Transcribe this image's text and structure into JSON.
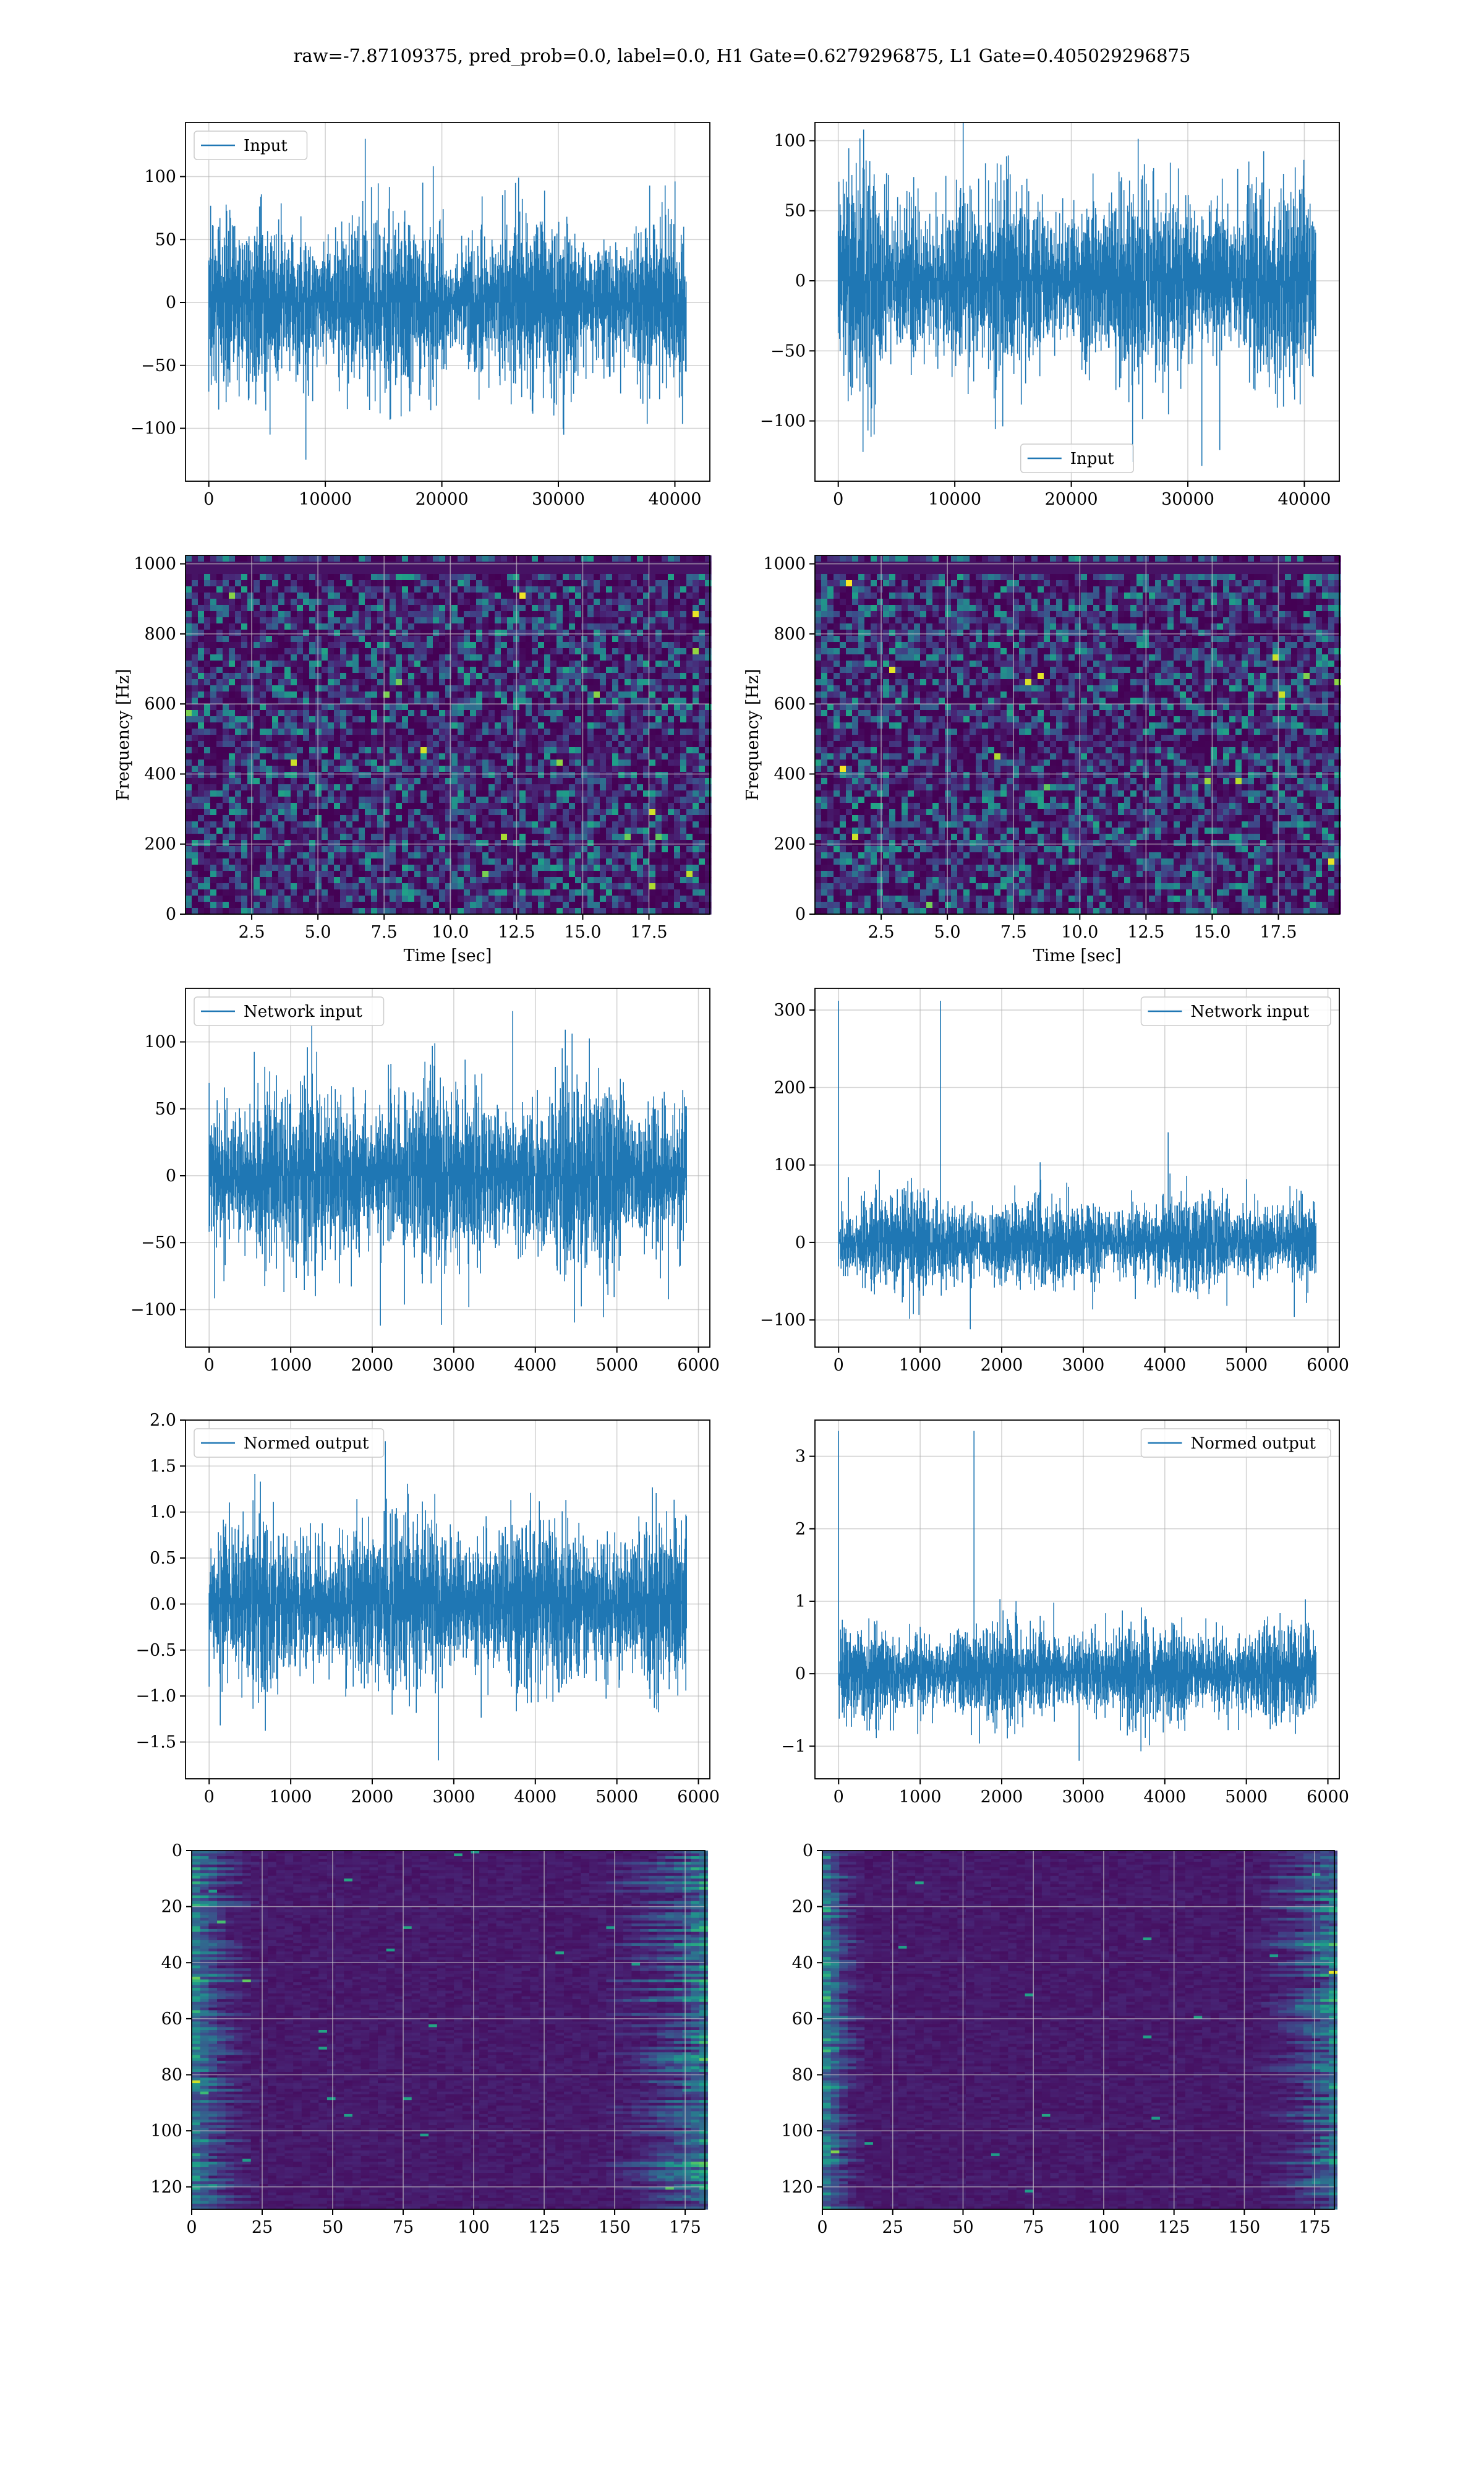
{
  "figure": {
    "suptitle": "raw=-7.87109375, pred_prob=0.0, label=0.0, H1 Gate=0.6279296875, L1 Gate=0.405029296875"
  },
  "colors": {
    "series": "#1f77b4",
    "grid": "#b0b0b0",
    "viridis_dark": "#440154",
    "viridis_yellow": "#fde725"
  },
  "chart_data": [
    {
      "id": "h1-input",
      "type": "line",
      "series": [
        {
          "name": "Input",
          "n_samples": 40960,
          "mean": 0,
          "std": 28,
          "min": -125,
          "max": 130
        }
      ],
      "legend_position": "top-left",
      "xlim": [
        -2000,
        43000
      ],
      "ylim": [
        -142,
        143
      ],
      "xticks": [
        0,
        10000,
        20000,
        30000,
        40000
      ],
      "xtick_labels": [
        "0",
        "10000",
        "20000",
        "30000",
        "40000"
      ],
      "yticks": [
        -100,
        -50,
        0,
        50,
        100
      ],
      "ytick_labels": [
        "−100",
        "−50",
        "0",
        "50",
        "100"
      ],
      "grid": true,
      "xlabel": "",
      "ylabel": ""
    },
    {
      "id": "l1-input",
      "type": "line",
      "series": [
        {
          "name": "Input",
          "n_samples": 40960,
          "mean": 0,
          "std": 28,
          "min": -132,
          "max": 115
        }
      ],
      "legend_position": "bottom-center",
      "xlim": [
        -2000,
        43000
      ],
      "ylim": [
        -143,
        113
      ],
      "xticks": [
        0,
        10000,
        20000,
        30000,
        40000
      ],
      "xtick_labels": [
        "0",
        "10000",
        "20000",
        "30000",
        "40000"
      ],
      "yticks": [
        -100,
        -50,
        0,
        50,
        100
      ],
      "ytick_labels": [
        "−100",
        "−50",
        "0",
        "50",
        "100"
      ],
      "grid": true,
      "xlabel": "",
      "ylabel": ""
    },
    {
      "id": "h1-spectrogram",
      "type": "heatmap",
      "colormap": "viridis",
      "xlim": [
        0,
        19.8
      ],
      "ylim": [
        0,
        1024
      ],
      "xticks": [
        2.5,
        5.0,
        7.5,
        10.0,
        12.5,
        15.0,
        17.5
      ],
      "xtick_labels": [
        "2.5",
        "5.0",
        "7.5",
        "10.0",
        "12.5",
        "15.0",
        "17.5"
      ],
      "yticks": [
        0,
        200,
        400,
        600,
        800,
        1000
      ],
      "ytick_labels": [
        "0",
        "200",
        "400",
        "600",
        "800",
        "1000"
      ],
      "xlabel": "Time [sec]",
      "ylabel": "Frequency [Hz]",
      "grid": true
    },
    {
      "id": "l1-spectrogram",
      "type": "heatmap",
      "colormap": "viridis",
      "xlim": [
        0,
        19.8
      ],
      "ylim": [
        0,
        1024
      ],
      "xticks": [
        2.5,
        5.0,
        7.5,
        10.0,
        12.5,
        15.0,
        17.5
      ],
      "xtick_labels": [
        "2.5",
        "5.0",
        "7.5",
        "10.0",
        "12.5",
        "15.0",
        "17.5"
      ],
      "yticks": [
        0,
        200,
        400,
        600,
        800,
        1000
      ],
      "ytick_labels": [
        "0",
        "200",
        "400",
        "600",
        "800",
        "1000"
      ],
      "xlabel": "Time [sec]",
      "ylabel": "Frequency [Hz]",
      "grid": true
    },
    {
      "id": "h1-network-input",
      "type": "line",
      "series": [
        {
          "name": "Network input",
          "n_samples": 5850,
          "mean": 0,
          "std": 28,
          "min": -112,
          "max": 123
        }
      ],
      "legend_position": "top-left",
      "xlim": [
        -290,
        6140
      ],
      "ylim": [
        -128,
        140
      ],
      "xticks": [
        0,
        1000,
        2000,
        3000,
        4000,
        5000,
        6000
      ],
      "xtick_labels": [
        "0",
        "1000",
        "2000",
        "3000",
        "4000",
        "5000",
        "6000"
      ],
      "yticks": [
        -100,
        -50,
        0,
        50,
        100
      ],
      "ytick_labels": [
        "−100",
        "−50",
        "0",
        "50",
        "100"
      ],
      "grid": true,
      "xlabel": "",
      "ylabel": ""
    },
    {
      "id": "l1-network-input",
      "type": "line",
      "series": [
        {
          "name": "Network input",
          "n_samples": 5850,
          "mean": 0,
          "std": 24,
          "min": -112,
          "max": 312,
          "spike_at": 0
        }
      ],
      "legend_position": "top-right",
      "xlim": [
        -290,
        6140
      ],
      "ylim": [
        -135,
        328
      ],
      "xticks": [
        0,
        1000,
        2000,
        3000,
        4000,
        5000,
        6000
      ],
      "xtick_labels": [
        "0",
        "1000",
        "2000",
        "3000",
        "4000",
        "5000",
        "6000"
      ],
      "yticks": [
        -100,
        0,
        100,
        200,
        300
      ],
      "ytick_labels": [
        "−100",
        "0",
        "100",
        "200",
        "300"
      ],
      "grid": true,
      "xlabel": "",
      "ylabel": ""
    },
    {
      "id": "h1-normed-output",
      "type": "line",
      "series": [
        {
          "name": "Normed output",
          "n_samples": 5850,
          "mean": 0,
          "std": 0.38,
          "min": -1.7,
          "max": 1.77
        }
      ],
      "legend_position": "top-left",
      "xlim": [
        -290,
        6140
      ],
      "ylim": [
        -1.9,
        2.0
      ],
      "xticks": [
        0,
        1000,
        2000,
        3000,
        4000,
        5000,
        6000
      ],
      "xtick_labels": [
        "0",
        "1000",
        "2000",
        "3000",
        "4000",
        "5000",
        "6000"
      ],
      "yticks": [
        -1.5,
        -1.0,
        -0.5,
        0.0,
        0.5,
        1.0,
        1.5,
        2.0
      ],
      "ytick_labels": [
        "−1.5",
        "−1.0",
        "−0.5",
        "0.0",
        "0.5",
        "1.0",
        "1.5",
        "2.0"
      ],
      "grid": true,
      "xlabel": "",
      "ylabel": ""
    },
    {
      "id": "l1-normed-output",
      "type": "line",
      "series": [
        {
          "name": "Normed output",
          "n_samples": 5850,
          "mean": 0,
          "std": 0.27,
          "min": -1.2,
          "max": 3.35,
          "spike_at": 0
        }
      ],
      "legend_position": "top-right",
      "xlim": [
        -290,
        6140
      ],
      "ylim": [
        -1.45,
        3.5
      ],
      "xticks": [
        0,
        1000,
        2000,
        3000,
        4000,
        5000,
        6000
      ],
      "xtick_labels": [
        "0",
        "1000",
        "2000",
        "3000",
        "4000",
        "5000",
        "6000"
      ],
      "yticks": [
        -1,
        0,
        1,
        2,
        3
      ],
      "ytick_labels": [
        "−1",
        "0",
        "1",
        "2",
        "3"
      ],
      "grid": true,
      "xlabel": "",
      "ylabel": ""
    },
    {
      "id": "h1-feature-map",
      "type": "heatmap",
      "colormap": "viridis",
      "xlim": [
        0,
        182
      ],
      "ylim": [
        128,
        0
      ],
      "xticks": [
        0,
        25,
        50,
        75,
        100,
        125,
        150,
        175
      ],
      "xtick_labels": [
        "0",
        "25",
        "50",
        "75",
        "100",
        "125",
        "150",
        "175"
      ],
      "yticks": [
        0,
        20,
        40,
        60,
        80,
        100,
        120
      ],
      "ytick_labels": [
        "0",
        "20",
        "40",
        "60",
        "80",
        "100",
        "120"
      ],
      "grid": true,
      "xlabel": "",
      "ylabel": ""
    },
    {
      "id": "l1-feature-map",
      "type": "heatmap",
      "colormap": "viridis",
      "xlim": [
        0,
        182
      ],
      "ylim": [
        128,
        0
      ],
      "xticks": [
        0,
        25,
        50,
        75,
        100,
        125,
        150,
        175
      ],
      "xtick_labels": [
        "0",
        "25",
        "50",
        "75",
        "100",
        "125",
        "150",
        "175"
      ],
      "yticks": [
        0,
        20,
        40,
        60,
        80,
        100,
        120
      ],
      "ytick_labels": [
        "0",
        "20",
        "40",
        "60",
        "80",
        "100",
        "120"
      ],
      "grid": true,
      "xlabel": "",
      "ylabel": ""
    }
  ]
}
